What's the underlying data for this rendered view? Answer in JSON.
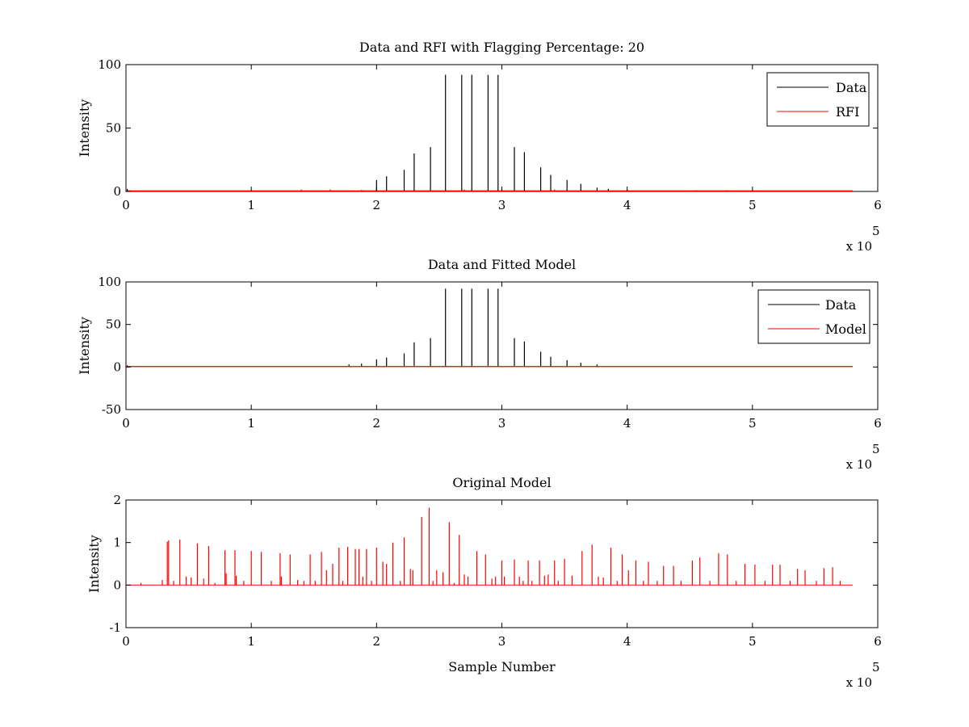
{
  "figure": {
    "background": "#ffffff"
  },
  "chart_data": [
    {
      "type": "line",
      "title": "Data and RFI with Flagging Percentage: 20",
      "xlabel": "",
      "ylabel": "Intensity",
      "xlim": [
        0,
        600000
      ],
      "ylim": [
        0,
        100
      ],
      "x_ticks": [
        0,
        1,
        2,
        3,
        4,
        5,
        6
      ],
      "y_ticks": [
        0,
        50,
        100
      ],
      "x_exponent_label": "x 10",
      "x_exponent_power": "5",
      "grid": false,
      "legend_position": "top-right",
      "series": [
        {
          "name": "Data",
          "color": "#000000",
          "baseline": 0.5,
          "end_x": 580000,
          "peaks": [
            [
              1000,
              2
            ],
            [
              200000,
              9
            ],
            [
              208000,
              12
            ],
            [
              222000,
              17
            ],
            [
              230000,
              30
            ],
            [
              243000,
              35
            ],
            [
              255000,
              92
            ],
            [
              268000,
              92
            ],
            [
              276000,
              92
            ],
            [
              289000,
              92
            ],
            [
              297000,
              92
            ],
            [
              310000,
              35
            ],
            [
              318000,
              31
            ],
            [
              331000,
              19
            ],
            [
              339000,
              13
            ],
            [
              352000,
              9
            ],
            [
              363000,
              6
            ],
            [
              376000,
              3
            ],
            [
              385000,
              2
            ]
          ]
        },
        {
          "name": "RFI",
          "color": "#ff0000",
          "baseline": 0.3,
          "end_x": 580000,
          "peaks": [
            [
              140000,
              1.5
            ],
            [
              163000,
              1.5
            ],
            [
              188000,
              1.2
            ],
            [
              270000,
              1.5
            ],
            [
              300000,
              2
            ],
            [
              342000,
              1.5
            ],
            [
              400000,
              1.2
            ],
            [
              455000,
              1
            ],
            [
              480000,
              1
            ]
          ]
        }
      ]
    },
    {
      "type": "line",
      "title": "Data and Fitted Model",
      "xlabel": "",
      "ylabel": "Intensity",
      "xlim": [
        0,
        600000
      ],
      "ylim": [
        -50,
        100
      ],
      "x_ticks": [
        0,
        1,
        2,
        3,
        4,
        5,
        6
      ],
      "y_ticks": [
        -50,
        0,
        50,
        100
      ],
      "x_exponent_label": "x 10",
      "x_exponent_power": "5",
      "grid": false,
      "legend_position": "top-right",
      "series": [
        {
          "name": "Data",
          "color": "#000000",
          "baseline": 0.5,
          "end_x": 580000,
          "peaks": [
            [
              1000,
              2
            ],
            [
              178000,
              3
            ],
            [
              188000,
              4
            ],
            [
              200000,
              9
            ],
            [
              208000,
              11
            ],
            [
              222000,
              16
            ],
            [
              230000,
              29
            ],
            [
              243000,
              34
            ],
            [
              255000,
              92
            ],
            [
              268000,
              92
            ],
            [
              276000,
              92
            ],
            [
              289000,
              92
            ],
            [
              297000,
              92
            ],
            [
              310000,
              34
            ],
            [
              318000,
              30
            ],
            [
              331000,
              18
            ],
            [
              339000,
              12
            ],
            [
              352000,
              8
            ],
            [
              363000,
              5
            ],
            [
              376000,
              3
            ]
          ]
        },
        {
          "name": "Model",
          "color": "#ff0000",
          "baseline": 0.5,
          "end_x": 580000,
          "peaks": [
            [
              2000,
              1
            ],
            [
              19000,
              0.5
            ],
            [
              208000,
              1
            ],
            [
              230000,
              2
            ],
            [
              255000,
              2
            ],
            [
              289000,
              2
            ],
            [
              310000,
              1.5
            ]
          ]
        }
      ]
    },
    {
      "type": "line",
      "title": "Original Model",
      "xlabel": "Sample Number",
      "ylabel": "Intensity",
      "xlim": [
        0,
        600000
      ],
      "ylim": [
        -1,
        2
      ],
      "x_ticks": [
        0,
        1,
        2,
        3,
        4,
        5,
        6
      ],
      "y_ticks": [
        -1,
        0,
        1,
        2
      ],
      "x_exponent_label": "x 10",
      "x_exponent_power": "5",
      "grid": false,
      "legend_position": "",
      "series": [
        {
          "color": "#ff0000",
          "baseline": 0,
          "end_x": 580000,
          "peaks": [
            [
              12000,
              0.05
            ],
            [
              29000,
              0.12
            ],
            [
              33000,
              1.02
            ],
            [
              34000,
              1.05
            ],
            [
              38000,
              0.1
            ],
            [
              43000,
              1.07
            ],
            [
              48000,
              0.2
            ],
            [
              52000,
              0.18
            ],
            [
              57000,
              0.98
            ],
            [
              62000,
              0.15
            ],
            [
              66000,
              0.92
            ],
            [
              71000,
              0.05
            ],
            [
              79000,
              0.82
            ],
            [
              80000,
              0.28
            ],
            [
              87000,
              0.82
            ],
            [
              88000,
              0.22
            ],
            [
              94000,
              0.1
            ],
            [
              100000,
              0.8
            ],
            [
              108000,
              0.78
            ],
            [
              116000,
              0.1
            ],
            [
              123000,
              0.75
            ],
            [
              124000,
              0.2
            ],
            [
              131000,
              0.72
            ],
            [
              137000,
              0.12
            ],
            [
              142000,
              0.1
            ],
            [
              147000,
              0.72
            ],
            [
              151000,
              0.1
            ],
            [
              156000,
              0.78
            ],
            [
              160000,
              0.35
            ],
            [
              165000,
              0.5
            ],
            [
              170000,
              0.88
            ],
            [
              173000,
              0.1
            ],
            [
              177000,
              0.9
            ],
            [
              183000,
              0.85
            ],
            [
              186000,
              0.85
            ],
            [
              189000,
              0.2
            ],
            [
              192000,
              0.85
            ],
            [
              196000,
              0.1
            ],
            [
              200000,
              0.88
            ],
            [
              205000,
              0.55
            ],
            [
              208000,
              0.5
            ],
            [
              213000,
              1
            ],
            [
              219000,
              0.1
            ],
            [
              222000,
              1.12
            ],
            [
              227000,
              0.38
            ],
            [
              229000,
              0.35
            ],
            [
              236000,
              1.6
            ],
            [
              242000,
              1.82
            ],
            [
              245000,
              0.1
            ],
            [
              248000,
              0.35
            ],
            [
              253000,
              0.3
            ],
            [
              258000,
              1.48
            ],
            [
              262000,
              0.05
            ],
            [
              266000,
              1.18
            ],
            [
              270000,
              0.25
            ],
            [
              273000,
              0.2
            ],
            [
              280000,
              0.8
            ],
            [
              287000,
              0.72
            ],
            [
              292000,
              0.15
            ],
            [
              295000,
              0.2
            ],
            [
              300000,
              0.58
            ],
            [
              302000,
              0.2
            ],
            [
              310000,
              0.6
            ],
            [
              314000,
              0.2
            ],
            [
              317000,
              0.1
            ],
            [
              321000,
              0.58
            ],
            [
              324000,
              0.1
            ],
            [
              330000,
              0.58
            ],
            [
              334000,
              0.22
            ],
            [
              337000,
              0.25
            ],
            [
              342000,
              0.58
            ],
            [
              345000,
              0.1
            ],
            [
              350000,
              0.62
            ],
            [
              356000,
              0.22
            ],
            [
              364000,
              0.8
            ],
            [
              372000,
              0.95
            ],
            [
              377000,
              0.2
            ],
            [
              381000,
              0.18
            ],
            [
              387000,
              0.88
            ],
            [
              392000,
              0.1
            ],
            [
              396000,
              0.72
            ],
            [
              401000,
              0.35
            ],
            [
              407000,
              0.58
            ],
            [
              413000,
              0.1
            ],
            [
              417000,
              0.55
            ],
            [
              424000,
              0.1
            ],
            [
              429000,
              0.45
            ],
            [
              437000,
              0.45
            ],
            [
              443000,
              0.1
            ],
            [
              452000,
              0.58
            ],
            [
              458000,
              0.65
            ],
            [
              466000,
              0.1
            ],
            [
              473000,
              0.75
            ],
            [
              480000,
              0.72
            ],
            [
              487000,
              0.1
            ],
            [
              494000,
              0.5
            ],
            [
              502000,
              0.48
            ],
            [
              510000,
              0.1
            ],
            [
              516000,
              0.48
            ],
            [
              522000,
              0.48
            ],
            [
              530000,
              0.1
            ],
            [
              536000,
              0.38
            ],
            [
              542000,
              0.35
            ],
            [
              551000,
              0.1
            ],
            [
              557000,
              0.4
            ],
            [
              564000,
              0.42
            ],
            [
              570000,
              0.1
            ]
          ]
        }
      ]
    }
  ]
}
